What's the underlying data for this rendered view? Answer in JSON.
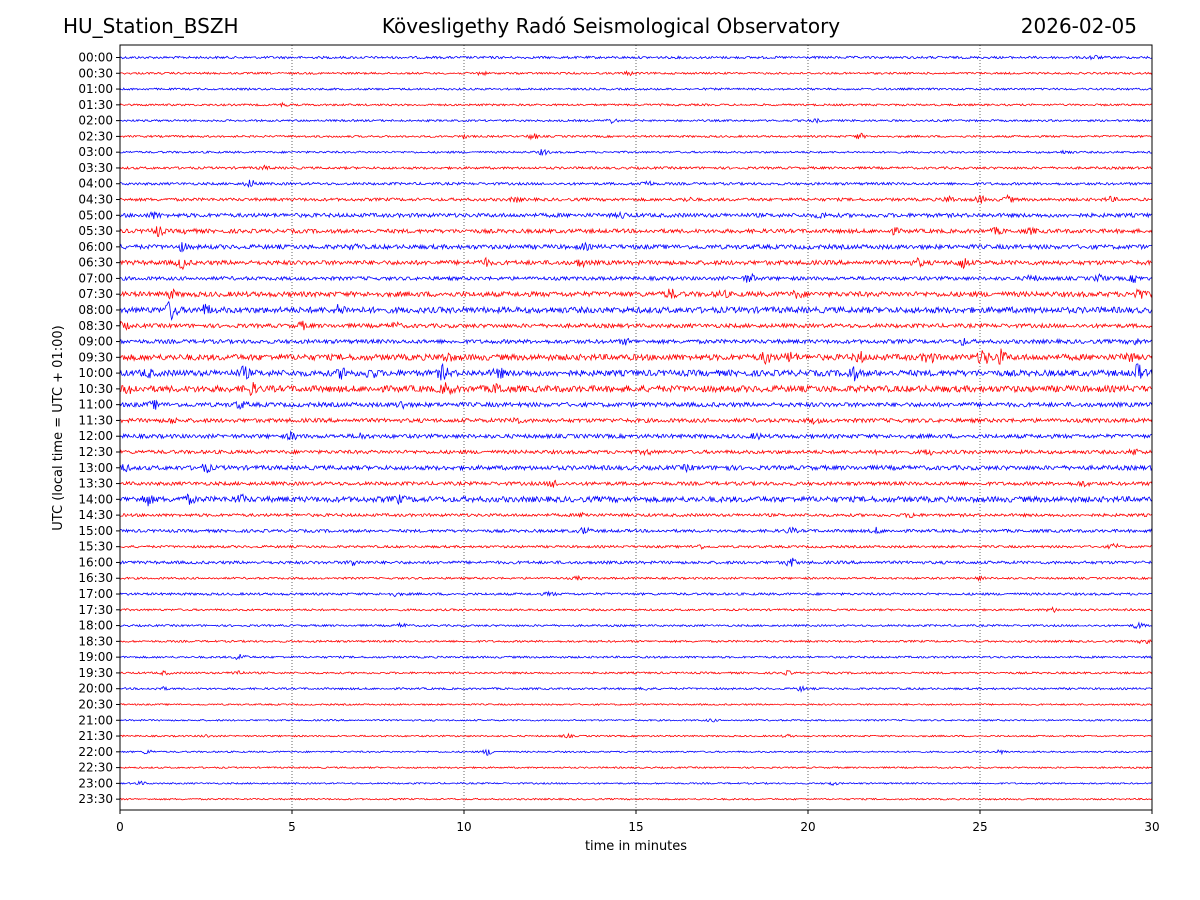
{
  "header": {
    "station": "HU_Station_BSZH",
    "title": "Kövesligethy Radó Seismological Observatory",
    "date": "2026-02-05"
  },
  "chart_data": {
    "type": "line",
    "title": "Kövesligethy Radó Seismological Observatory",
    "xlabel": "time in minutes",
    "ylabel": "UTC (local time = UTC + 01:00)",
    "xlim": [
      0,
      30
    ],
    "xticks": [
      0,
      5,
      10,
      15,
      20,
      25,
      30
    ],
    "grid": "vertical dotted at x ticks",
    "colors": {
      "even_row": "#0000ff",
      "odd_row": "#ff0000"
    },
    "series": [
      {
        "name": "00:00",
        "amp": 1.2,
        "events": [
          [
            28.3,
            2
          ]
        ]
      },
      {
        "name": "00:30",
        "amp": 1.0,
        "events": [
          [
            10.5,
            1.5
          ],
          [
            14.8,
            1.5
          ]
        ]
      },
      {
        "name": "01:00",
        "amp": 1.0,
        "events": []
      },
      {
        "name": "01:30",
        "amp": 1.0,
        "events": [
          [
            4.7,
            1.5
          ]
        ]
      },
      {
        "name": "02:00",
        "amp": 1.0,
        "events": [
          [
            14.3,
            2
          ],
          [
            20.2,
            1.5
          ]
        ]
      },
      {
        "name": "02:30",
        "amp": 1.0,
        "events": [
          [
            12.0,
            2.5
          ],
          [
            21.5,
            2.5
          ],
          [
            10.0,
            1.2
          ]
        ]
      },
      {
        "name": "03:00",
        "amp": 1.0,
        "events": [
          [
            12.3,
            2.5
          ],
          [
            27.5,
            1.5
          ]
        ]
      },
      {
        "name": "03:30",
        "amp": 1.2,
        "events": [
          [
            4.2,
            1.5
          ]
        ]
      },
      {
        "name": "04:00",
        "amp": 1.3,
        "events": [
          [
            3.8,
            3.5
          ],
          [
            15.3,
            3
          ]
        ]
      },
      {
        "name": "04:30",
        "amp": 1.5,
        "events": [
          [
            24.1,
            3
          ],
          [
            25.0,
            3
          ],
          [
            25.8,
            3
          ],
          [
            28.8,
            2
          ],
          [
            11.5,
            2
          ],
          [
            16.5,
            1.5
          ]
        ]
      },
      {
        "name": "05:00",
        "amp": 2.0,
        "events": [
          [
            1.0,
            2.5
          ],
          [
            14.6,
            2
          ],
          [
            20.4,
            2
          ]
        ]
      },
      {
        "name": "05:30",
        "amp": 2.0,
        "events": [
          [
            1.1,
            4.5
          ],
          [
            2.0,
            2
          ],
          [
            22.5,
            2
          ],
          [
            25.5,
            2.5
          ],
          [
            26.5,
            2
          ]
        ]
      },
      {
        "name": "06:00",
        "amp": 2.2,
        "events": [
          [
            1.8,
            3
          ],
          [
            6.8,
            2
          ],
          [
            13.5,
            2
          ]
        ]
      },
      {
        "name": "06:30",
        "amp": 2.2,
        "events": [
          [
            1.8,
            5
          ],
          [
            10.6,
            3
          ],
          [
            13.4,
            3
          ],
          [
            23.2,
            3
          ],
          [
            24.5,
            5
          ]
        ]
      },
      {
        "name": "07:00",
        "amp": 1.8,
        "events": [
          [
            18.3,
            4
          ],
          [
            26.5,
            3
          ],
          [
            28.5,
            3
          ],
          [
            29.5,
            3
          ]
        ]
      },
      {
        "name": "07:30",
        "amp": 2.5,
        "events": [
          [
            16.0,
            4
          ],
          [
            17.5,
            3
          ],
          [
            19.7,
            3
          ],
          [
            29.6,
            5
          ],
          [
            1.5,
            3
          ]
        ]
      },
      {
        "name": "08:00",
        "amp": 3.0,
        "events": [
          [
            1.5,
            9
          ],
          [
            2.5,
            4
          ],
          [
            6.4,
            4
          ]
        ]
      },
      {
        "name": "08:30",
        "amp": 2.0,
        "events": [
          [
            0.1,
            3
          ],
          [
            5.3,
            3
          ],
          [
            8.0,
            2.5
          ]
        ]
      },
      {
        "name": "09:00",
        "amp": 2.0,
        "events": [
          [
            29.5,
            3
          ],
          [
            24.5,
            2.5
          ],
          [
            14.7,
            2
          ]
        ]
      },
      {
        "name": "09:30",
        "amp": 3.0,
        "events": [
          [
            18.8,
            5
          ],
          [
            19.5,
            4
          ],
          [
            21.5,
            4
          ],
          [
            23.5,
            5
          ],
          [
            25.1,
            7
          ],
          [
            25.6,
            6
          ],
          [
            29.3,
            4
          ],
          [
            9.5,
            3
          ]
        ]
      },
      {
        "name": "10:00",
        "amp": 3.0,
        "events": [
          [
            0.8,
            3
          ],
          [
            3.6,
            5
          ],
          [
            6.5,
            5
          ],
          [
            7.3,
            4
          ],
          [
            9.4,
            6
          ],
          [
            11.0,
            4
          ],
          [
            21.3,
            6
          ],
          [
            29.6,
            7
          ]
        ]
      },
      {
        "name": "10:30",
        "amp": 3.2,
        "events": [
          [
            0.3,
            4
          ],
          [
            3.8,
            5
          ],
          [
            9.5,
            5
          ],
          [
            11.0,
            4
          ]
        ]
      },
      {
        "name": "11:00",
        "amp": 2.2,
        "events": [
          [
            1.0,
            3
          ],
          [
            3.5,
            3
          ],
          [
            8.2,
            3
          ]
        ]
      },
      {
        "name": "11:30",
        "amp": 2.0,
        "events": [
          [
            1.5,
            2
          ],
          [
            11.5,
            3
          ],
          [
            20.2,
            2
          ]
        ]
      },
      {
        "name": "12:00",
        "amp": 2.0,
        "events": [
          [
            5.0,
            3
          ],
          [
            7.0,
            2.5
          ],
          [
            18.5,
            2
          ]
        ]
      },
      {
        "name": "12:30",
        "amp": 1.8,
        "events": [
          [
            15.3,
            2
          ],
          [
            22.0,
            2
          ],
          [
            23.5,
            2
          ],
          [
            29.5,
            2.5
          ]
        ]
      },
      {
        "name": "13:00",
        "amp": 2.2,
        "events": [
          [
            0.1,
            3
          ],
          [
            2.5,
            3.5
          ],
          [
            16.5,
            2
          ],
          [
            17.6,
            2
          ]
        ]
      },
      {
        "name": "13:30",
        "amp": 1.8,
        "events": [
          [
            12.6,
            3
          ],
          [
            28.0,
            2
          ]
        ]
      },
      {
        "name": "14:00",
        "amp": 2.8,
        "events": [
          [
            0.8,
            4.5
          ],
          [
            2.0,
            3
          ],
          [
            3.5,
            3
          ],
          [
            8.1,
            2.5
          ]
        ]
      },
      {
        "name": "14:30",
        "amp": 1.5,
        "events": [
          [
            13.5,
            2
          ],
          [
            23.0,
            2
          ]
        ]
      },
      {
        "name": "15:00",
        "amp": 1.5,
        "events": [
          [
            13.5,
            3
          ],
          [
            19.5,
            2.5
          ],
          [
            22.0,
            2.5
          ]
        ]
      },
      {
        "name": "15:30",
        "amp": 1.2,
        "events": [
          [
            16.8,
            2.5
          ],
          [
            28.9,
            2.5
          ]
        ]
      },
      {
        "name": "16:00",
        "amp": 1.5,
        "events": [
          [
            6.8,
            3
          ],
          [
            19.5,
            4
          ]
        ]
      },
      {
        "name": "16:30",
        "amp": 1.0,
        "events": [
          [
            13.3,
            1.5
          ],
          [
            25.0,
            1.5
          ]
        ]
      },
      {
        "name": "17:00",
        "amp": 1.2,
        "events": [
          [
            8.0,
            1.5
          ],
          [
            12.5,
            1.5
          ]
        ]
      },
      {
        "name": "17:30",
        "amp": 1.0,
        "events": [
          [
            27.1,
            2
          ]
        ]
      },
      {
        "name": "18:00",
        "amp": 1.0,
        "events": [
          [
            8.2,
            2
          ],
          [
            29.6,
            3
          ]
        ]
      },
      {
        "name": "18:30",
        "amp": 1.0,
        "events": [
          [
            29.8,
            3
          ]
        ]
      },
      {
        "name": "19:00",
        "amp": 1.0,
        "events": [
          [
            3.5,
            3.5
          ]
        ]
      },
      {
        "name": "19:30",
        "amp": 1.0,
        "events": [
          [
            1.3,
            1.5
          ],
          [
            3.4,
            2.5
          ],
          [
            19.4,
            1.5
          ]
        ]
      },
      {
        "name": "20:00",
        "amp": 1.0,
        "events": [
          [
            1.2,
            1.5
          ],
          [
            15.3,
            1.2
          ],
          [
            19.8,
            2
          ]
        ]
      },
      {
        "name": "20:30",
        "amp": 0.8,
        "events": []
      },
      {
        "name": "21:00",
        "amp": 0.8,
        "events": [
          [
            17.2,
            1.2
          ]
        ]
      },
      {
        "name": "21:30",
        "amp": 0.8,
        "events": [
          [
            2.5,
            1.2
          ],
          [
            13.0,
            1.5
          ],
          [
            19.4,
            1.2
          ]
        ]
      },
      {
        "name": "22:00",
        "amp": 0.8,
        "events": [
          [
            0.8,
            2
          ],
          [
            10.7,
            3
          ],
          [
            25.6,
            1.5
          ]
        ]
      },
      {
        "name": "22:30",
        "amp": 0.8,
        "events": []
      },
      {
        "name": "23:00",
        "amp": 0.8,
        "events": [
          [
            0.6,
            1.5
          ],
          [
            20.7,
            1.5
          ]
        ]
      },
      {
        "name": "23:30",
        "amp": 0.8,
        "events": []
      }
    ]
  }
}
